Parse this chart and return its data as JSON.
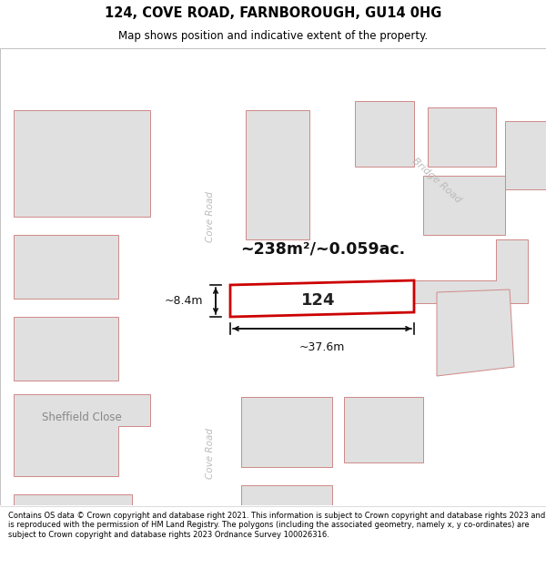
{
  "title": "124, COVE ROAD, FARNBOROUGH, GU14 0HG",
  "subtitle": "Map shows position and indicative extent of the property.",
  "footer": "Contains OS data © Crown copyright and database right 2021. This information is subject to Crown copyright and database rights 2023 and is reproduced with the permission of HM Land Registry. The polygons (including the associated geometry, namely x, y co-ordinates) are subject to Crown copyright and database rights 2023 Ordnance Survey 100026316.",
  "bg_color": "#ffffff",
  "map_bg": "#ffffff",
  "road_fill": "#ffffff",
  "building_fill": "#e0e0e0",
  "road_stroke": "#f0a0a0",
  "building_stroke": "#d08888",
  "highlight_stroke": "#cc0000",
  "dim_color": "#111111",
  "area_text": "~238m²/~0.059ac.",
  "label_124": "124",
  "dim_width": "~37.6m",
  "dim_height": "~8.4m",
  "label_bridge": "Bridge Road",
  "label_cove_top": "Cove Road",
  "label_cove_bottom": "Cove Road",
  "label_sheffield": "Sheffield Close",
  "road_label_color": "#bbbbbb",
  "sheffield_color": "#888888"
}
